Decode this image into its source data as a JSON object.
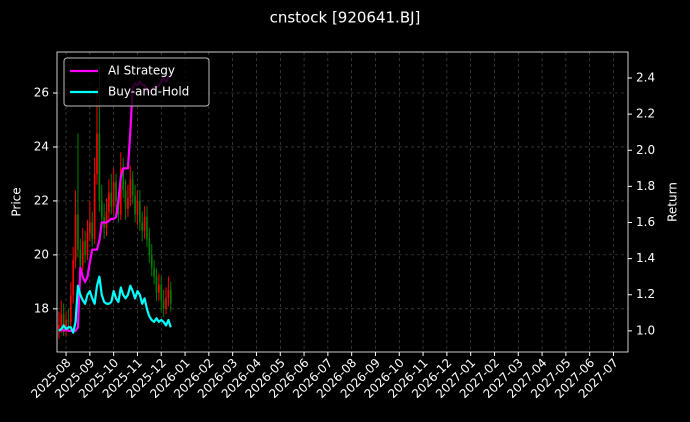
{
  "chart_data": {
    "type": "candlestick",
    "title": "cnstock [920641.BJ]",
    "y_label": "Price",
    "y2_label": "Return",
    "up_color": "#ff0000",
    "down_color": "#008000",
    "grid": true,
    "legend": "upper left",
    "x": [
      -0.3,
      -0.2,
      -0.1,
      0,
      0.1,
      0.2,
      0.3,
      0.4,
      0.5,
      0.6,
      0.7,
      0.8,
      0.9,
      1,
      1.1,
      1.2,
      1.3,
      1.4,
      1.5,
      1.6,
      1.7,
      1.8,
      1.9,
      2,
      2.1,
      2.2,
      2.3,
      2.4,
      2.5,
      2.6,
      2.7,
      2.8,
      2.9,
      3,
      3.1,
      3.2,
      3.3,
      3.4,
      3.5,
      3.6,
      3.7,
      3.8,
      3.9,
      4,
      4.1,
      4.2,
      4.3,
      4.4
    ],
    "open": [
      17.2,
      17.4,
      17.8,
      17.3,
      17.6,
      17.5,
      18.5,
      19.8,
      21.5,
      20.2,
      19.6,
      20.5,
      20.0,
      20.8,
      21.2,
      20.6,
      23.0,
      24.5,
      22.0,
      21.4,
      21.0,
      21.6,
      22.3,
      21.8,
      22.7,
      22.0,
      21.5,
      23.2,
      22.4,
      21.7,
      22.1,
      22.8,
      22.2,
      21.5,
      22.0,
      21.2,
      20.9,
      21.4,
      20.6,
      20.0,
      19.5,
      19.2,
      18.6,
      18.9,
      18.3,
      18.0,
      18.4,
      18.7
    ],
    "high": [
      17.9,
      18.3,
      18.2,
      17.9,
      18.0,
      19.0,
      20.3,
      22.4,
      24.5,
      20.6,
      21.0,
      20.9,
      21.3,
      22.0,
      21.6,
      23.6,
      26.2,
      27.0,
      22.6,
      21.9,
      22.1,
      22.8,
      23.0,
      23.2,
      23.0,
      22.3,
      23.8,
      23.6,
      22.8,
      22.6,
      23.3,
      23.1,
      22.6,
      22.4,
      22.4,
      21.6,
      21.8,
      21.8,
      21.0,
      20.4,
      19.8,
      19.5,
      19.3,
      19.2,
      18.7,
      18.8,
      19.2,
      19.0
    ],
    "low": [
      16.9,
      17.1,
      17.0,
      17.0,
      17.2,
      17.3,
      18.2,
      19.5,
      19.9,
      19.3,
      19.4,
      19.7,
      19.8,
      20.5,
      20.3,
      20.4,
      22.6,
      21.6,
      21.1,
      20.6,
      20.7,
      21.3,
      21.5,
      21.5,
      21.7,
      21.2,
      21.3,
      22.1,
      21.3,
      21.4,
      21.8,
      21.9,
      21.2,
      21.1,
      20.9,
      20.5,
      20.6,
      20.3,
      19.7,
      19.2,
      18.9,
      18.3,
      18.3,
      17.9,
      17.7,
      17.8,
      18.1,
      17.9
    ],
    "close": [
      17.4,
      17.8,
      17.3,
      17.6,
      17.5,
      18.5,
      19.8,
      21.5,
      20.2,
      19.6,
      20.5,
      20.0,
      20.8,
      21.2,
      20.6,
      23.0,
      24.5,
      22.0,
      21.4,
      21.0,
      21.6,
      22.3,
      21.8,
      22.7,
      22.0,
      21.5,
      23.2,
      22.4,
      21.7,
      22.1,
      22.8,
      22.2,
      21.5,
      22.0,
      21.2,
      20.9,
      21.4,
      20.6,
      20.0,
      19.5,
      19.2,
      18.6,
      18.9,
      18.3,
      18.0,
      18.4,
      18.7,
      18.2
    ],
    "series": [
      {
        "name": "AI Strategy",
        "color": "#ff00ff",
        "axis": "y2",
        "values": [
          1.0,
          1.01,
          1.0,
          1.01,
          1.0,
          1.0,
          1.0,
          1.0,
          1.02,
          1.35,
          1.3,
          1.27,
          1.3,
          1.38,
          1.45,
          1.45,
          1.45,
          1.5,
          1.6,
          1.6,
          1.6,
          1.61,
          1.62,
          1.62,
          1.63,
          1.72,
          1.85,
          1.9,
          1.9,
          1.9,
          2.1,
          2.35,
          2.37,
          2.36,
          2.38,
          2.36,
          2.36,
          2.33,
          2.32,
          2.34,
          2.35,
          2.35,
          2.36,
          2.38,
          2.4,
          2.38,
          2.4,
          2.42
        ]
      },
      {
        "name": "Buy-and-Hold",
        "color": "#00ffff",
        "axis": "y2",
        "values": [
          1.0,
          1.01,
          1.03,
          1.01,
          1.02,
          1.02,
          0.99,
          1.05,
          1.25,
          1.2,
          1.17,
          1.15,
          1.2,
          1.22,
          1.18,
          1.15,
          1.25,
          1.3,
          1.2,
          1.16,
          1.15,
          1.15,
          1.16,
          1.22,
          1.18,
          1.16,
          1.24,
          1.2,
          1.18,
          1.2,
          1.25,
          1.22,
          1.18,
          1.22,
          1.2,
          1.15,
          1.18,
          1.12,
          1.08,
          1.06,
          1.05,
          1.07,
          1.05,
          1.06,
          1.05,
          1.03,
          1.06,
          1.02
        ]
      }
    ],
    "xlim": [
      -0.38,
      23.61
    ],
    "xticks": [
      {
        "value": 0,
        "label": "2025-08"
      },
      {
        "value": 1,
        "label": "2025-09"
      },
      {
        "value": 2,
        "label": "2025-10"
      },
      {
        "value": 3,
        "label": "2025-11"
      },
      {
        "value": 4,
        "label": "2025-12"
      },
      {
        "value": 5,
        "label": "2026-01"
      },
      {
        "value": 6,
        "label": "2026-02"
      },
      {
        "value": 7,
        "label": "2026-03"
      },
      {
        "value": 8,
        "label": "2026-04"
      },
      {
        "value": 9,
        "label": "2026-05"
      },
      {
        "value": 10,
        "label": "2026-06"
      },
      {
        "value": 11,
        "label": "2026-07"
      },
      {
        "value": 12,
        "label": "2026-08"
      },
      {
        "value": 13,
        "label": "2026-09"
      },
      {
        "value": 14,
        "label": "2026-10"
      },
      {
        "value": 15,
        "label": "2026-11"
      },
      {
        "value": 16,
        "label": "2026-12"
      },
      {
        "value": 17,
        "label": "2027-01"
      },
      {
        "value": 18,
        "label": "2027-02"
      },
      {
        "value": 19,
        "label": "2027-03"
      },
      {
        "value": 20,
        "label": "2027-04"
      },
      {
        "value": 21,
        "label": "2027-05"
      },
      {
        "value": 22,
        "label": "2027-06"
      },
      {
        "value": 23,
        "label": "2027-07"
      }
    ],
    "ylim": [
      16.4,
      27.52
    ],
    "yticks": [
      18,
      20,
      22,
      24,
      26
    ],
    "y2lim": [
      0.883,
      2.544
    ],
    "y2ticks": [
      {
        "value": 1,
        "label": "1.0"
      },
      1.2,
      1.4,
      1.6,
      1.8,
      {
        "value": 2,
        "label": "2.0"
      },
      2.2,
      2.4
    ]
  }
}
